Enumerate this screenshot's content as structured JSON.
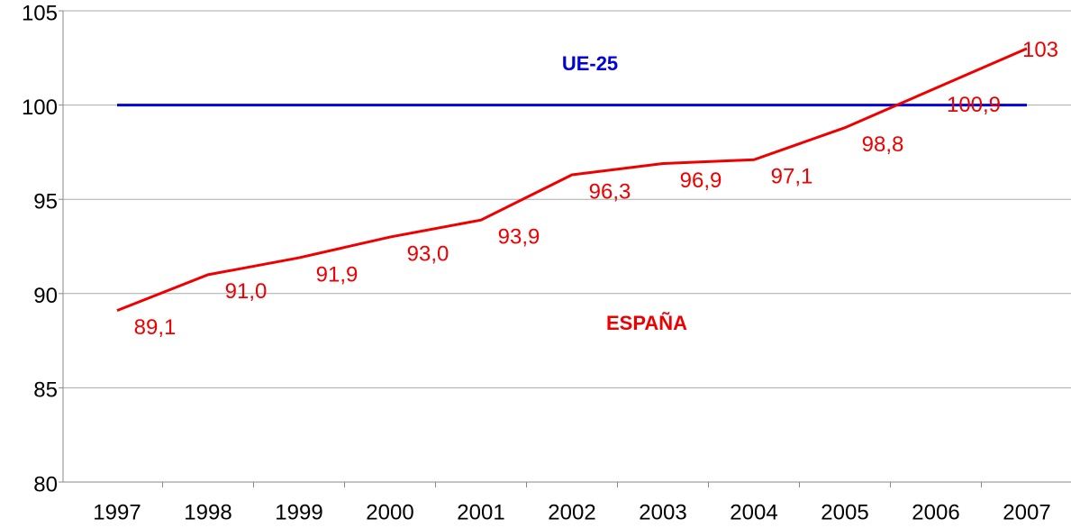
{
  "chart_data": {
    "type": "line",
    "categories": [
      "1997",
      "1998",
      "1999",
      "2000",
      "2001",
      "2002",
      "2003",
      "2004",
      "2005",
      "2006",
      "2007"
    ],
    "series": [
      {
        "name": "UE-25",
        "color": "#0000dd",
        "values": [
          100,
          100,
          100,
          100,
          100,
          100,
          100,
          100,
          100,
          100,
          100
        ]
      },
      {
        "name": "ESPAÑA",
        "color": "#ee0000",
        "values": [
          89.1,
          91.0,
          91.9,
          93.0,
          93.9,
          96.3,
          96.9,
          97.1,
          98.8,
          100.9,
          103
        ],
        "value_labels": [
          "89,1",
          "91,0",
          "91,9",
          "93,0",
          "93,9",
          "96,3",
          "96,9",
          "97,1",
          "98,8",
          "100,9",
          "103"
        ]
      }
    ],
    "ylim": [
      80,
      105
    ],
    "yticks": [
      80,
      85,
      90,
      95,
      100,
      105
    ],
    "grid": true
  }
}
